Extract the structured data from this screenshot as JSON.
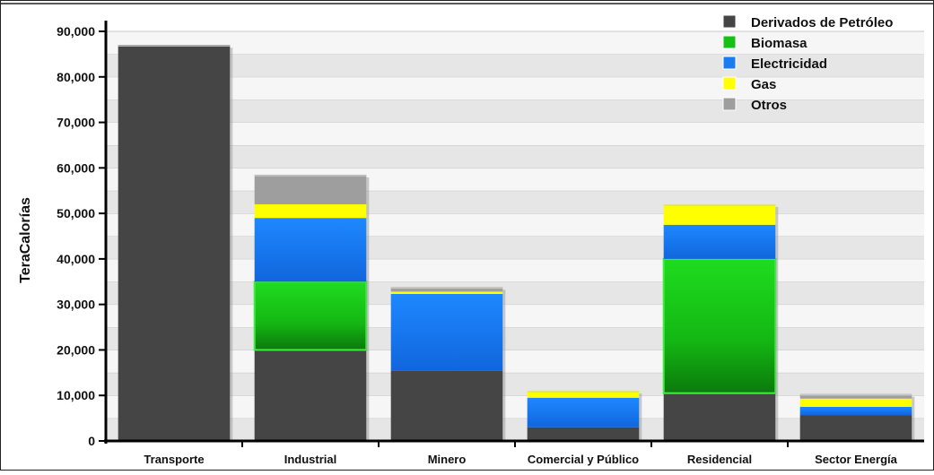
{
  "chart_data": {
    "type": "bar",
    "stacked": true,
    "title": "",
    "xlabel": "",
    "ylabel": "TeraCalorías",
    "ylim": [
      0,
      90000
    ],
    "yticks": [
      0,
      10000,
      20000,
      30000,
      40000,
      50000,
      60000,
      70000,
      80000,
      90000
    ],
    "ytick_labels": [
      "0",
      "10,000",
      "20,000",
      "30,000",
      "40,000",
      "50,000",
      "60,000",
      "70,000",
      "80,000",
      "90,000"
    ],
    "grid": true,
    "legend_position": "top-right",
    "categories": [
      "Transporte",
      "Industrial",
      "Minero",
      "Comercial y Público",
      "Residencial",
      "Sector Energía"
    ],
    "series": [
      {
        "name": "Derivados de Petróleo",
        "color": "#454545",
        "values": [
          87000,
          20000,
          15500,
          3000,
          10500,
          5700
        ]
      },
      {
        "name": "Biomasa",
        "color": "#2ecc2e",
        "values": [
          0,
          15000,
          0,
          0,
          29500,
          0
        ]
      },
      {
        "name": "Electricidad",
        "color": "#1a7cf0",
        "values": [
          0,
          14000,
          16800,
          6500,
          7500,
          1800
        ]
      },
      {
        "name": "Gas",
        "color": "#ffff00",
        "values": [
          0,
          3000,
          500,
          1500,
          4500,
          1800
        ]
      },
      {
        "name": "Otros",
        "color": "#9e9e9e",
        "values": [
          0,
          6500,
          1000,
          0,
          0,
          1000
        ]
      }
    ]
  }
}
